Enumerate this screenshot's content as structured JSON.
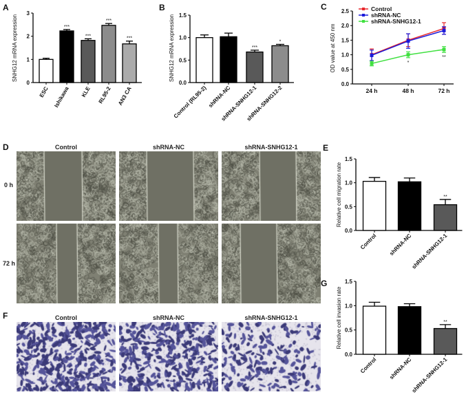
{
  "panels": {
    "A": "A",
    "B": "B",
    "C": "C",
    "D": "D",
    "E": "E",
    "F": "F",
    "G": "G"
  },
  "panel_d": {
    "columns": [
      "Control",
      "shRNA-NC",
      "shRNA-SNHG12-1"
    ],
    "rows": [
      "0 h",
      "72 h"
    ]
  },
  "panel_f": {
    "columns": [
      "Control",
      "shRNA-NC",
      "shRNA-SNHG12-1"
    ]
  },
  "chart_data": [
    {
      "panel": "A",
      "type": "bar",
      "ylabel": "SNHG12 mRNA expression",
      "ylim": [
        0,
        3
      ],
      "yticks": [
        "0",
        "1",
        "2",
        "3"
      ],
      "categories": [
        "ESC",
        "Ishikawa",
        "KLE",
        "RL95-2",
        "AN3 CA"
      ],
      "values": [
        1.0,
        2.23,
        1.82,
        2.47,
        1.67
      ],
      "errors": [
        0.05,
        0.06,
        0.07,
        0.08,
        0.12
      ],
      "annotations": [
        "",
        "***",
        "***",
        "***",
        "***"
      ],
      "colors": [
        "#ffffff",
        "#000000",
        "#595959",
        "#8c8c8c",
        "#ababab"
      ]
    },
    {
      "panel": "B",
      "type": "bar",
      "ylabel": "SNHG12 mRNA expression",
      "ylim": [
        0,
        1.5
      ],
      "yticks": [
        "0.0",
        "0.5",
        "1.0",
        "1.5"
      ],
      "categories": [
        "Control (RL95-2)",
        "shRNA-NC",
        "shRNA-SNHG12-1",
        "shRNA-SNHG12-2"
      ],
      "values": [
        1.0,
        1.02,
        0.68,
        0.82
      ],
      "errors": [
        0.06,
        0.08,
        0.04,
        0.03
      ],
      "annotations": [
        "",
        "",
        "***",
        "*"
      ],
      "colors": [
        "#ffffff",
        "#000000",
        "#595959",
        "#8c8c8c"
      ]
    },
    {
      "panel": "C",
      "type": "line",
      "ylabel": "OD value at 450 nm",
      "ylim": [
        0,
        2.5
      ],
      "yticks": [
        "0.0",
        "0.5",
        "1.0",
        "1.5",
        "2.0",
        "2.5"
      ],
      "categories": [
        "24 h",
        "48 h",
        "72 h"
      ],
      "legend": "top-left",
      "series": [
        {
          "name": "Control",
          "values": [
            1.0,
            1.5,
            1.9
          ],
          "errors": [
            0.2,
            0.22,
            0.2
          ],
          "color": "#e8262b"
        },
        {
          "name": "shRNA-NC",
          "values": [
            0.98,
            1.47,
            1.83
          ],
          "errors": [
            0.18,
            0.25,
            0.13
          ],
          "color": "#1a1adb"
        },
        {
          "name": "shRNA-SNHG12-1",
          "values": [
            0.7,
            1.0,
            1.18
          ],
          "errors": [
            0.08,
            0.1,
            0.1
          ],
          "color": "#3fe03f"
        }
      ],
      "annotations": [
        "",
        "*",
        "**"
      ]
    },
    {
      "panel": "E",
      "type": "bar",
      "ylabel": "Relative cell migration rate",
      "ylim": [
        0,
        1.5
      ],
      "yticks": [
        "0.0",
        "0.5",
        "1.0",
        "1.5"
      ],
      "categories": [
        "Control",
        "shRNA-NC",
        "shRNA-SNHG12-1"
      ],
      "values": [
        1.03,
        1.02,
        0.54
      ],
      "errors": [
        0.08,
        0.08,
        0.11
      ],
      "annotations": [
        "",
        "",
        "**"
      ],
      "colors": [
        "#ffffff",
        "#000000",
        "#595959"
      ]
    },
    {
      "panel": "G",
      "type": "bar",
      "ylabel": "Relative cell invasion rate",
      "ylim": [
        0,
        1.5
      ],
      "yticks": [
        "0.0",
        "0.5",
        "1.0",
        "1.5"
      ],
      "categories": [
        "Control",
        "shRNA-NC",
        "shRNA-SNHG12-1"
      ],
      "values": [
        0.99,
        0.98,
        0.53
      ],
      "errors": [
        0.08,
        0.06,
        0.08
      ],
      "annotations": [
        "",
        "",
        "**"
      ],
      "colors": [
        "#ffffff",
        "#000000",
        "#595959"
      ]
    }
  ]
}
